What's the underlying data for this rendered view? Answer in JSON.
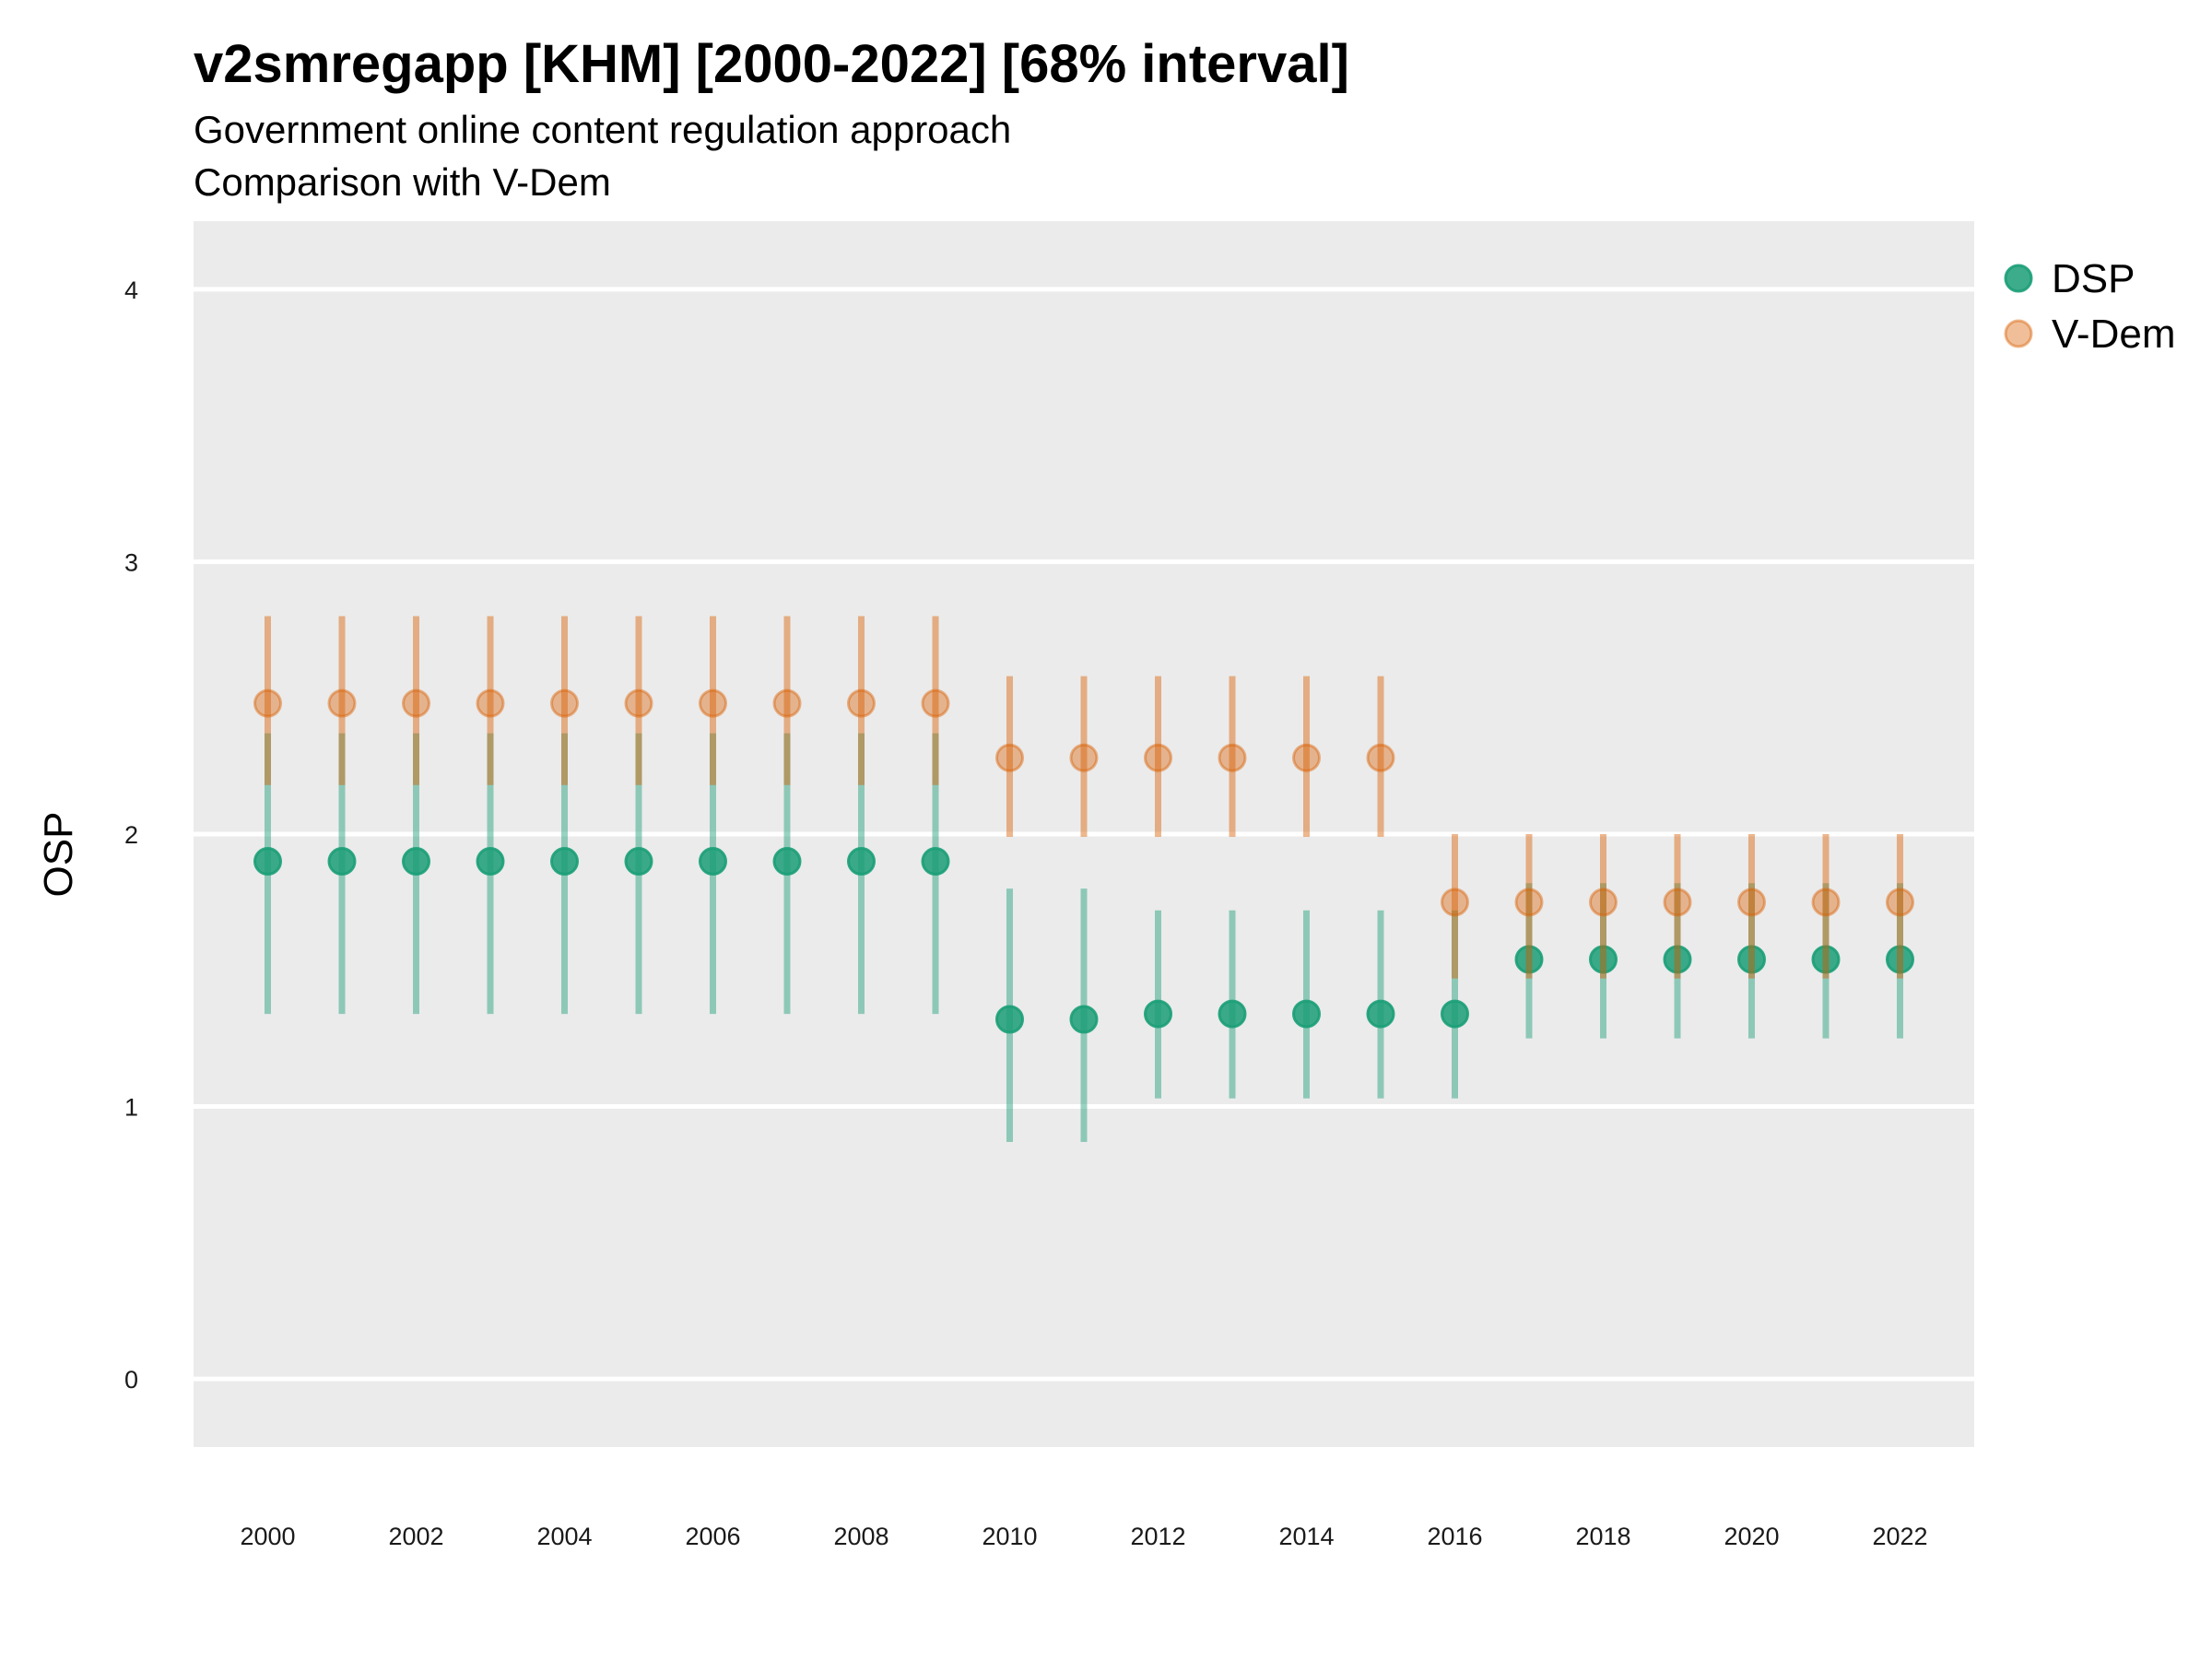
{
  "chart_data": {
    "type": "scatter",
    "title": "v2smregapp [KHM] [2000-2022] [68% interval]",
    "subtitle_lines": [
      "Government online content regulation approach",
      "Comparison with V-Dem"
    ],
    "xlabel": "",
    "ylabel": "OSP",
    "xlim": [
      1999,
      2023
    ],
    "ylim": [
      -0.25,
      4.25
    ],
    "x_ticks": [
      2000,
      2002,
      2004,
      2006,
      2008,
      2010,
      2012,
      2014,
      2016,
      2018,
      2020,
      2022
    ],
    "y_ticks": [
      0,
      1,
      2,
      3,
      4
    ],
    "grid": true,
    "legend_position": "right",
    "x": [
      2000,
      2001,
      2002,
      2003,
      2004,
      2005,
      2006,
      2007,
      2008,
      2009,
      2010,
      2011,
      2012,
      2013,
      2014,
      2015,
      2016,
      2017,
      2018,
      2019,
      2020,
      2021,
      2022
    ],
    "series": [
      {
        "name": "DSP",
        "color": "#1b9e77",
        "values": [
          1.9,
          1.9,
          1.9,
          1.9,
          1.9,
          1.9,
          1.9,
          1.9,
          1.9,
          1.9,
          1.32,
          1.32,
          1.34,
          1.34,
          1.34,
          1.34,
          1.34,
          1.54,
          1.54,
          1.54,
          1.54,
          1.54,
          1.54
        ],
        "lower": [
          1.34,
          1.34,
          1.34,
          1.34,
          1.34,
          1.34,
          1.34,
          1.34,
          1.34,
          1.34,
          0.87,
          0.87,
          1.03,
          1.03,
          1.03,
          1.03,
          1.03,
          1.25,
          1.25,
          1.25,
          1.25,
          1.25,
          1.25
        ],
        "upper": [
          2.37,
          2.37,
          2.37,
          2.37,
          2.37,
          2.37,
          2.37,
          2.37,
          2.37,
          2.37,
          1.8,
          1.8,
          1.72,
          1.72,
          1.72,
          1.72,
          1.72,
          1.82,
          1.82,
          1.82,
          1.82,
          1.82,
          1.82
        ]
      },
      {
        "name": "V-Dem",
        "color": "#d95f02",
        "values": [
          2.48,
          2.48,
          2.48,
          2.48,
          2.48,
          2.48,
          2.48,
          2.48,
          2.48,
          2.48,
          2.28,
          2.28,
          2.28,
          2.28,
          2.28,
          2.28,
          1.75,
          1.75,
          1.75,
          1.75,
          1.75,
          1.75,
          1.75
        ],
        "lower": [
          2.18,
          2.18,
          2.18,
          2.18,
          2.18,
          2.18,
          2.18,
          2.18,
          2.18,
          2.18,
          1.99,
          1.99,
          1.99,
          1.99,
          1.99,
          1.99,
          1.47,
          1.47,
          1.47,
          1.47,
          1.47,
          1.47,
          1.47
        ],
        "upper": [
          2.8,
          2.8,
          2.8,
          2.8,
          2.8,
          2.8,
          2.8,
          2.8,
          2.8,
          2.8,
          2.58,
          2.58,
          2.58,
          2.58,
          2.58,
          2.58,
          2.0,
          2.0,
          2.0,
          2.0,
          2.0,
          2.0,
          2.0
        ]
      }
    ],
    "colors": {
      "panel_background": "#ebebeb",
      "gridline": "#ffffff"
    }
  }
}
